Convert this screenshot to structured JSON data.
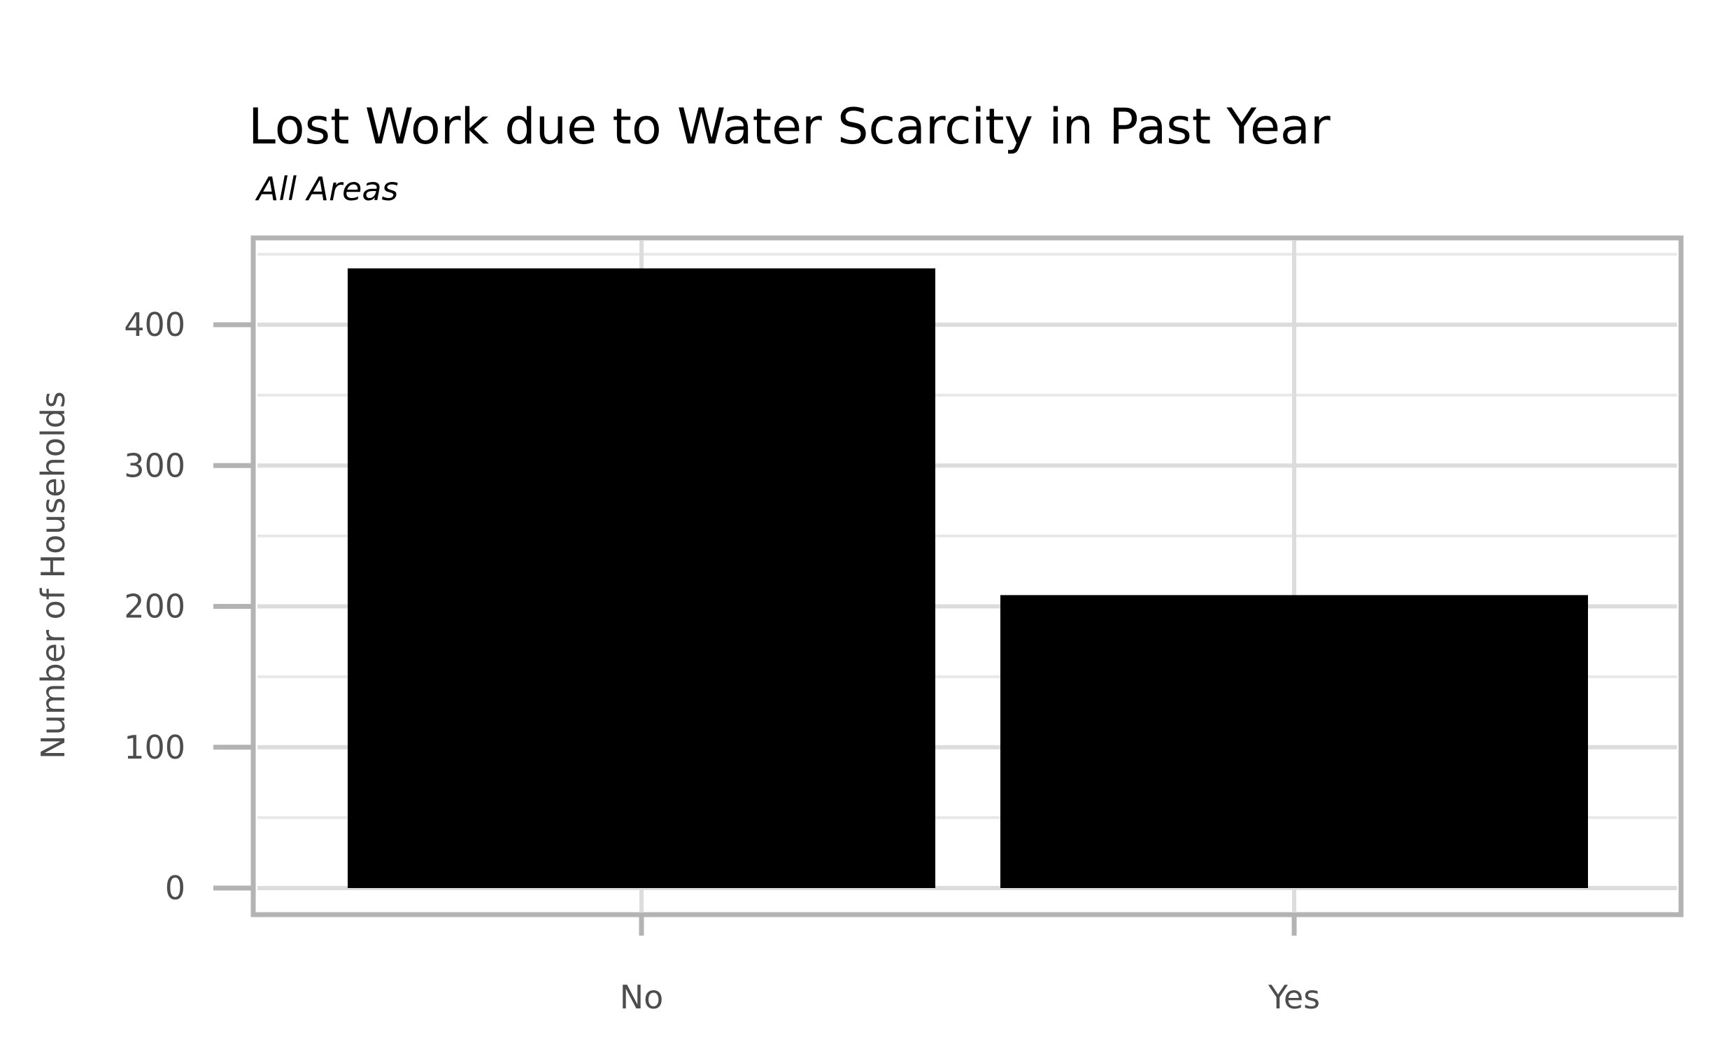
{
  "chart_data": {
    "type": "bar",
    "title": "Lost Work due to Water Scarcity in Past Year",
    "subtitle": "All Areas",
    "xlabel": "",
    "ylabel": "Number of Households",
    "categories": [
      "No",
      "Yes"
    ],
    "values": [
      440,
      208
    ],
    "ylim": [
      0,
      450
    ],
    "yticks": [
      0,
      100,
      200,
      300,
      400
    ],
    "grid": true,
    "legend": "none",
    "colors": {
      "bar": "#000000",
      "grid_major": "#dcdcdc",
      "grid_minor": "#e8e8e8",
      "panel_border": "#b3b3b3",
      "tick_mark": "#b3b3b3",
      "text": "#4d4d4d"
    }
  }
}
